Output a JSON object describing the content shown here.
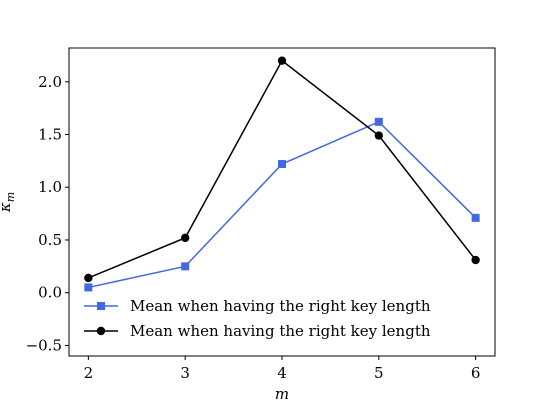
{
  "chart_data": {
    "type": "line",
    "title": "",
    "xlabel": "m",
    "ylabel": "κ",
    "ylabel_sub": "m",
    "x": [
      2,
      3,
      4,
      5,
      6
    ],
    "xlim": [
      1.8,
      6.2
    ],
    "ylim": [
      -0.6,
      2.32
    ],
    "xticks": [
      "2",
      "3",
      "4",
      "5",
      "6"
    ],
    "yticks": [
      "−0.5",
      "0.0",
      "0.5",
      "1.0",
      "1.5",
      "2.0"
    ],
    "ytick_values": [
      -0.5,
      0.0,
      0.5,
      1.0,
      1.5,
      2.0
    ],
    "grid": false,
    "legend_position": "lower-left",
    "series": [
      {
        "name": "Mean when having the right key length",
        "marker": "square",
        "color": "#4169e1",
        "values": [
          0.05,
          0.25,
          1.22,
          1.62,
          0.71
        ]
      },
      {
        "name": "Mean when having the right key length",
        "marker": "circle",
        "color": "#000000",
        "values": [
          0.14,
          0.52,
          2.2,
          1.49,
          0.31
        ]
      }
    ]
  }
}
